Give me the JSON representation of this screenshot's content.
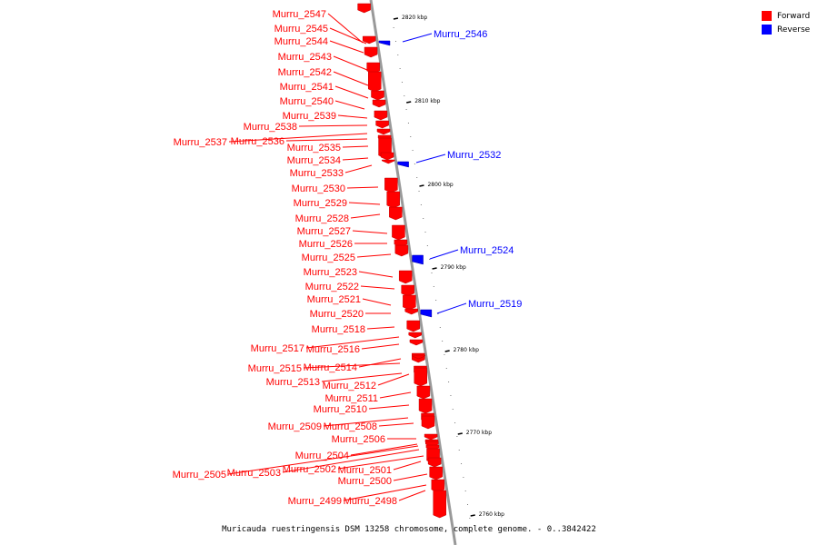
{
  "caption": "Muricauda ruestringensis DSM 13258 chromosome, complete genome. - 0..3842422",
  "legend": [
    {
      "label": "Forward",
      "color": "#ff0000"
    },
    {
      "label": "Reverse",
      "color": "#0000ff"
    }
  ],
  "colors": {
    "forward": "#ff0000",
    "reverse": "#0000ff",
    "backbone": "#999999"
  },
  "ticks": [
    "2820 kbp",
    "2810 kbp",
    "2800 kbp",
    "2790 kbp",
    "2780 kbp",
    "2770 kbp",
    "2760 kbp"
  ],
  "genes": [
    {
      "label": "Murru_2547",
      "strand": "forward"
    },
    {
      "label": "Murru_2546",
      "strand": "reverse"
    },
    {
      "label": "Murru_2545",
      "strand": "forward"
    },
    {
      "label": "Murru_2544",
      "strand": "forward"
    },
    {
      "label": "Murru_2543",
      "strand": "forward"
    },
    {
      "label": "Murru_2542",
      "strand": "forward"
    },
    {
      "label": "Murru_2541",
      "strand": "forward"
    },
    {
      "label": "Murru_2540",
      "strand": "forward"
    },
    {
      "label": "Murru_2539",
      "strand": "forward"
    },
    {
      "label": "Murru_2538",
      "strand": "forward"
    },
    {
      "label": "Murru_2537",
      "strand": "forward"
    },
    {
      "label": "Murru_2536",
      "strand": "forward"
    },
    {
      "label": "Murru_2535",
      "strand": "forward"
    },
    {
      "label": "Murru_2532",
      "strand": "reverse"
    },
    {
      "label": "Murru_2534",
      "strand": "forward"
    },
    {
      "label": "Murru_2533",
      "strand": "forward"
    },
    {
      "label": "Murru_2530",
      "strand": "forward"
    },
    {
      "label": "Murru_2529",
      "strand": "forward"
    },
    {
      "label": "Murru_2528",
      "strand": "forward"
    },
    {
      "label": "Murru_2527",
      "strand": "forward"
    },
    {
      "label": "Murru_2526",
      "strand": "forward"
    },
    {
      "label": "Murru_2524",
      "strand": "reverse"
    },
    {
      "label": "Murru_2525",
      "strand": "forward"
    },
    {
      "label": "Murru_2523",
      "strand": "forward"
    },
    {
      "label": "Murru_2522",
      "strand": "forward"
    },
    {
      "label": "Murru_2521",
      "strand": "forward"
    },
    {
      "label": "Murru_2519",
      "strand": "reverse"
    },
    {
      "label": "Murru_2520",
      "strand": "forward"
    },
    {
      "label": "Murru_2518",
      "strand": "forward"
    },
    {
      "label": "Murru_2517",
      "strand": "forward"
    },
    {
      "label": "Murru_2516",
      "strand": "forward"
    },
    {
      "label": "Murru_2515",
      "strand": "forward"
    },
    {
      "label": "Murru_2514",
      "strand": "forward"
    },
    {
      "label": "Murru_2513",
      "strand": "forward"
    },
    {
      "label": "Murru_2512",
      "strand": "forward"
    },
    {
      "label": "Murru_2511",
      "strand": "forward"
    },
    {
      "label": "Murru_2510",
      "strand": "forward"
    },
    {
      "label": "Murru_2509",
      "strand": "forward"
    },
    {
      "label": "Murru_2508",
      "strand": "forward"
    },
    {
      "label": "Murru_2506",
      "strand": "forward"
    },
    {
      "label": "Murru_2504",
      "strand": "forward"
    },
    {
      "label": "Murru_2505",
      "strand": "forward"
    },
    {
      "label": "Murru_2503",
      "strand": "forward"
    },
    {
      "label": "Murru_2502",
      "strand": "forward"
    },
    {
      "label": "Murru_2501",
      "strand": "forward"
    },
    {
      "label": "Murru_2500",
      "strand": "forward"
    },
    {
      "label": "Murru_2499",
      "strand": "forward"
    },
    {
      "label": "Murru_2498",
      "strand": "forward"
    }
  ]
}
